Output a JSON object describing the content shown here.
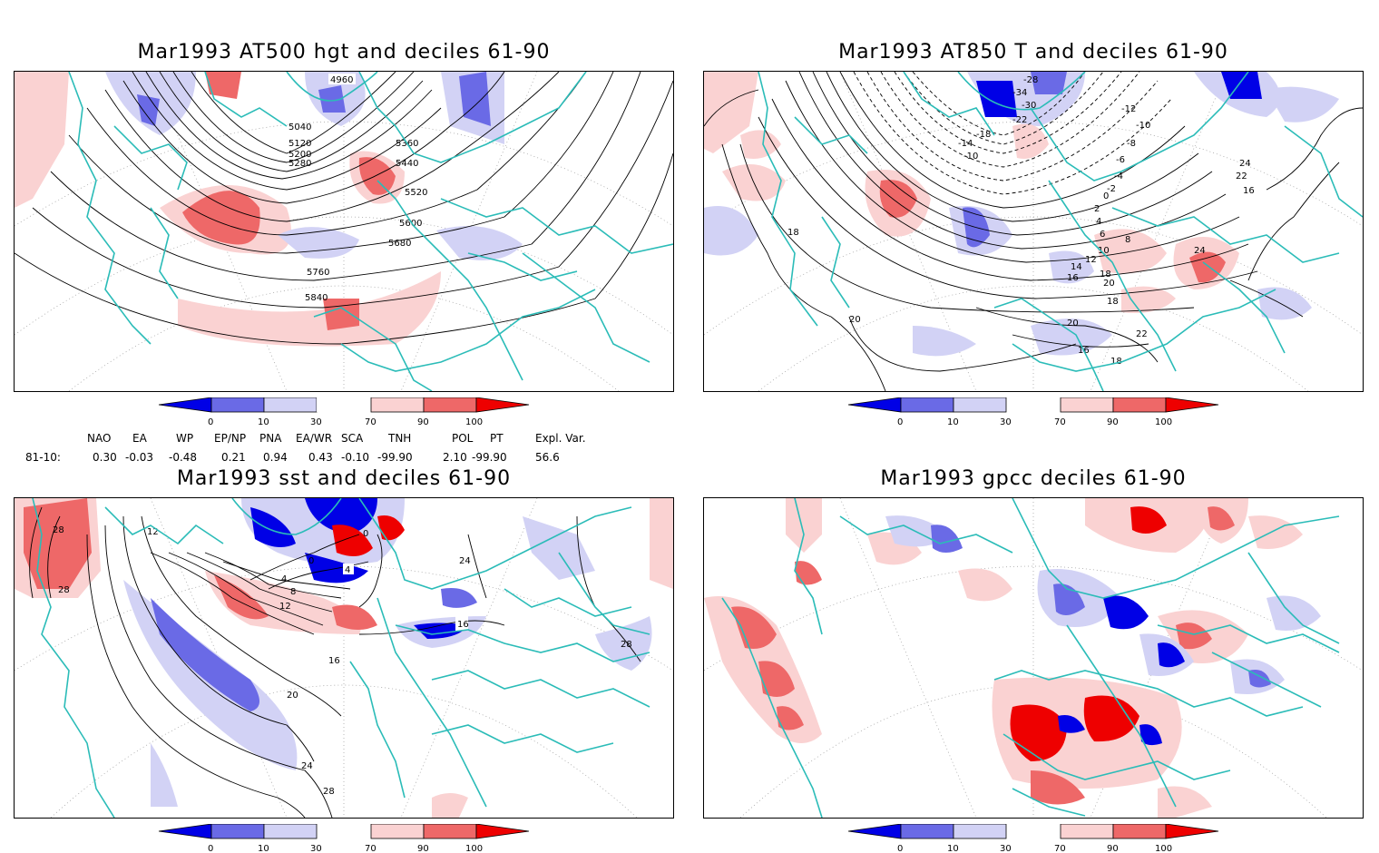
{
  "panels": [
    {
      "id": "p1",
      "title": "Mar1993 AT500 hgt and deciles 61-90",
      "contour_labels": [
        "4960",
        "5040",
        "5120",
        "5200",
        "5280",
        "5360",
        "5440",
        "5520",
        "5600",
        "5680",
        "5760",
        "5840"
      ]
    },
    {
      "id": "p2",
      "title": "Mar1993 AT850 T and deciles 61-90",
      "contour_labels": [
        "-28",
        "-34",
        "-30",
        "-22",
        "-18",
        "-14",
        "-10",
        "-12",
        "-10",
        "-8",
        "-6",
        "-4",
        "-2",
        "0",
        "2",
        "4",
        "6",
        "8",
        "10",
        "12",
        "14",
        "16",
        "18",
        "20",
        "22",
        "24",
        "16",
        "18",
        "20",
        "18",
        "16",
        "22",
        "20",
        "24",
        "18"
      ]
    },
    {
      "id": "p3",
      "title": "Mar1993 sst and deciles 61-90",
      "contour_labels": [
        "28",
        "28",
        "12",
        "0",
        "0",
        "4",
        "4",
        "8",
        "12",
        "16",
        "20",
        "24",
        "28",
        "16",
        "24",
        "28"
      ]
    },
    {
      "id": "p4",
      "title": "Mar1993 gpcc deciles 61-90",
      "contour_labels": []
    }
  ],
  "colorbar": {
    "labels": [
      "0",
      "10",
      "30",
      "70",
      "90",
      "100"
    ],
    "colors": [
      "#0000e6",
      "#6a6ae6",
      "#d2d2f5",
      "#ffffff",
      "#fad2d2",
      "#ee6868",
      "#ee0000"
    ]
  },
  "indices": {
    "headers": [
      "NAO",
      "EA",
      "WP",
      "EP/NP",
      "PNA",
      "EA/WR",
      "SCA",
      "TNH",
      "POL",
      "PT",
      "Expl. Var."
    ],
    "row_label": "81-10:",
    "values": [
      "0.30",
      "-0.03",
      "-0.48",
      "0.21",
      "0.94",
      "0.43",
      "-0.10",
      "-99.90",
      "2.10",
      "-99.90",
      "56.6"
    ]
  }
}
